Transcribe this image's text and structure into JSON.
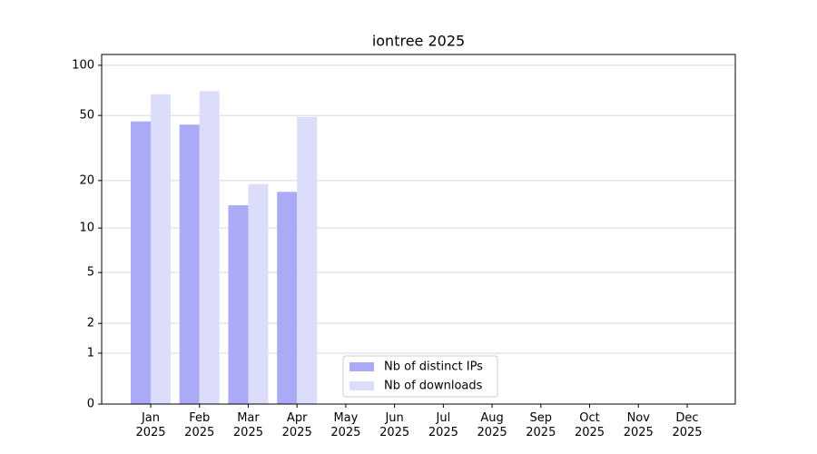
{
  "chart_data": {
    "type": "bar",
    "title": "iontree 2025",
    "categories": [
      "Jan\n2025",
      "Feb\n2025",
      "Mar\n2025",
      "Apr\n2025",
      "May\n2025",
      "Jun\n2025",
      "Jul\n2025",
      "Aug\n2025",
      "Sep\n2025",
      "Oct\n2025",
      "Nov\n2025",
      "Dec\n2025"
    ],
    "series": [
      {
        "name": "Nb of distinct IPs",
        "color": "#aaaaf6",
        "values": [
          46,
          44,
          14,
          17,
          null,
          null,
          null,
          null,
          null,
          null,
          null,
          null
        ]
      },
      {
        "name": "Nb of downloads",
        "color": "#dcdcfb",
        "values": [
          67,
          70,
          19,
          49,
          null,
          null,
          null,
          null,
          null,
          null,
          null,
          null
        ]
      }
    ],
    "yscale": "log1p",
    "ylim": [
      0,
      116
    ],
    "yticks": [
      0,
      1,
      2,
      5,
      10,
      20,
      50,
      100
    ],
    "grid": true,
    "legend": "lower center"
  }
}
